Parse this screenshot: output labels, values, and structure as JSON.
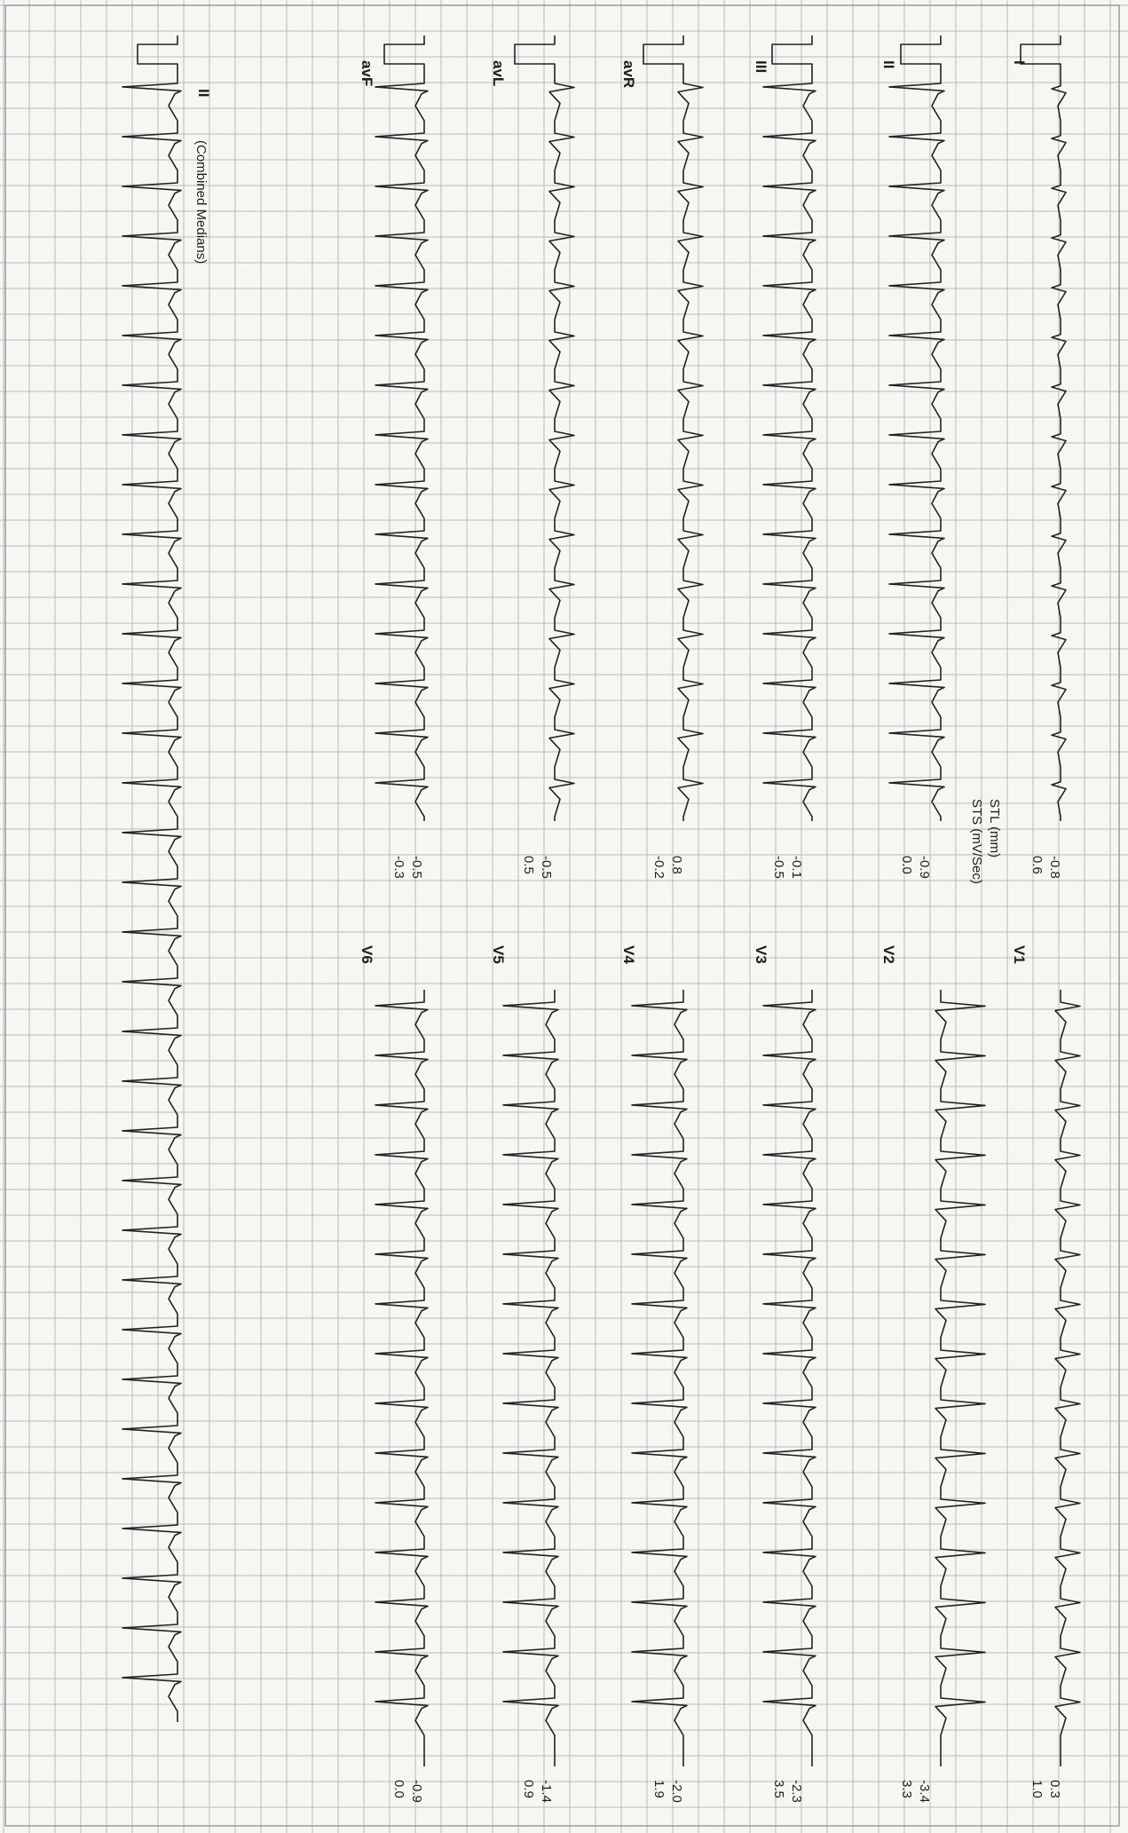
{
  "document": {
    "type": "12-lead ECG printout (rotated 90 degrees)",
    "header": {
      "stl_label": "STL (mm)",
      "sts_label": "STS (mV/Sec)"
    },
    "rhythm_strip": {
      "lead": "II",
      "caption": "(Combined Medians)"
    },
    "leads_left": [
      {
        "name": "I",
        "stl": "-0.8",
        "sts": "0.6"
      },
      {
        "name": "II",
        "stl": "-0.9",
        "sts": "0.0"
      },
      {
        "name": "III",
        "stl": "-0.1",
        "sts": "-0.5"
      },
      {
        "name": "avR",
        "stl": "0.8",
        "sts": "-0.2"
      },
      {
        "name": "avL",
        "stl": "-0.5",
        "sts": "0.5"
      },
      {
        "name": "avF",
        "stl": "-0.5",
        "sts": "-0.3"
      }
    ],
    "leads_right": [
      {
        "name": "V1",
        "stl": "0.3",
        "sts": "1.0"
      },
      {
        "name": "V2",
        "stl": "-3.4",
        "sts": "3.3"
      },
      {
        "name": "V3",
        "stl": "-2.3",
        "sts": "3.5"
      },
      {
        "name": "V4",
        "stl": "-2.0",
        "sts": "1.9"
      },
      {
        "name": "V5",
        "stl": "-1.4",
        "sts": "0.9"
      },
      {
        "name": "V6",
        "stl": "-0.9",
        "sts": "0.0"
      }
    ],
    "colors": {
      "paper": "#f7f6f2",
      "grid": "#b9b9bd",
      "trace": "#222222",
      "text": "#1e1e1e"
    }
  }
}
